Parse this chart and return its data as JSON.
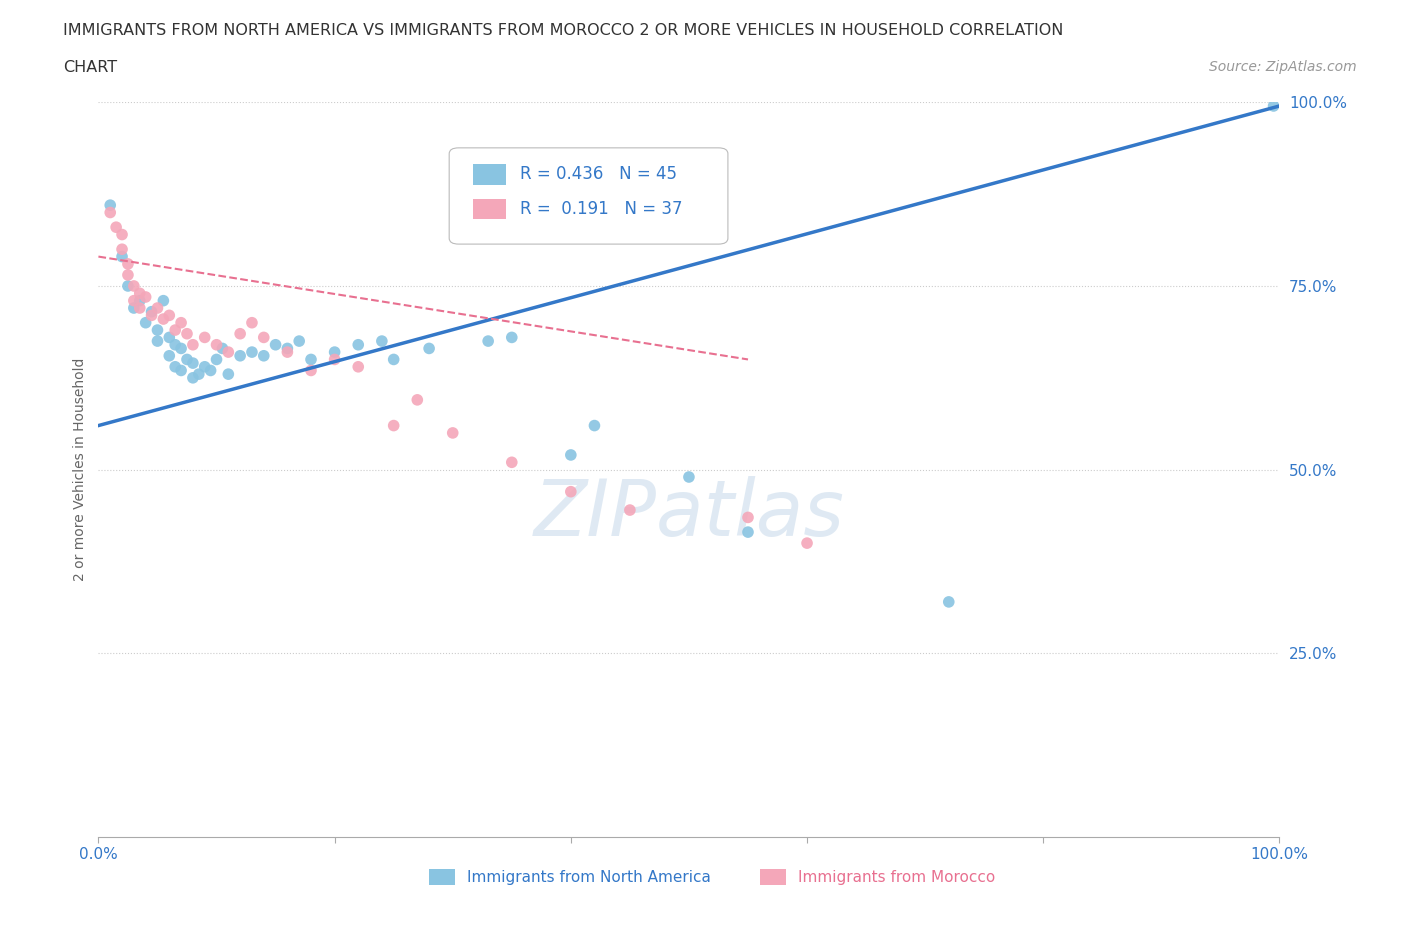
{
  "title_line1": "IMMIGRANTS FROM NORTH AMERICA VS IMMIGRANTS FROM MOROCCO 2 OR MORE VEHICLES IN HOUSEHOLD CORRELATION",
  "title_line2": "CHART",
  "source_text": "Source: ZipAtlas.com",
  "ylabel": "2 or more Vehicles in Household",
  "xlim": [
    0,
    100
  ],
  "ylim": [
    0,
    100
  ],
  "grid_color": "#cccccc",
  "background_color": "#ffffff",
  "watermark_text": "ZIPatlas",
  "R_blue": 0.436,
  "N_blue": 45,
  "R_pink": 0.191,
  "N_pink": 37,
  "blue_color": "#89c4e1",
  "pink_color": "#f4a7b9",
  "blue_line_color": "#3478c8",
  "pink_line_color": "#e87090",
  "label_color": "#3478c8",
  "pink_label_color": "#e87090",
  "north_america_label": "Immigrants from North America",
  "morocco_label": "Immigrants from Morocco",
  "north_america_points": [
    [
      1.0,
      86.0
    ],
    [
      2.0,
      79.0
    ],
    [
      2.5,
      75.0
    ],
    [
      3.0,
      72.0
    ],
    [
      3.5,
      73.0
    ],
    [
      4.0,
      70.0
    ],
    [
      4.5,
      71.5
    ],
    [
      5.0,
      69.0
    ],
    [
      5.0,
      67.5
    ],
    [
      5.5,
      73.0
    ],
    [
      6.0,
      68.0
    ],
    [
      6.0,
      65.5
    ],
    [
      6.5,
      67.0
    ],
    [
      6.5,
      64.0
    ],
    [
      7.0,
      66.5
    ],
    [
      7.0,
      63.5
    ],
    [
      7.5,
      65.0
    ],
    [
      8.0,
      64.5
    ],
    [
      8.0,
      62.5
    ],
    [
      8.5,
      63.0
    ],
    [
      9.0,
      64.0
    ],
    [
      9.5,
      63.5
    ],
    [
      10.0,
      65.0
    ],
    [
      10.5,
      66.5
    ],
    [
      11.0,
      63.0
    ],
    [
      12.0,
      65.5
    ],
    [
      13.0,
      66.0
    ],
    [
      14.0,
      65.5
    ],
    [
      15.0,
      67.0
    ],
    [
      16.0,
      66.5
    ],
    [
      17.0,
      67.5
    ],
    [
      18.0,
      65.0
    ],
    [
      20.0,
      66.0
    ],
    [
      22.0,
      67.0
    ],
    [
      24.0,
      67.5
    ],
    [
      25.0,
      65.0
    ],
    [
      28.0,
      66.5
    ],
    [
      33.0,
      67.5
    ],
    [
      35.0,
      68.0
    ],
    [
      40.0,
      52.0
    ],
    [
      42.0,
      56.0
    ],
    [
      50.0,
      49.0
    ],
    [
      55.0,
      41.5
    ],
    [
      72.0,
      32.0
    ],
    [
      99.5,
      99.5
    ]
  ],
  "morocco_points": [
    [
      1.0,
      85.0
    ],
    [
      1.5,
      83.0
    ],
    [
      2.0,
      82.0
    ],
    [
      2.0,
      80.0
    ],
    [
      2.5,
      78.0
    ],
    [
      2.5,
      76.5
    ],
    [
      3.0,
      75.0
    ],
    [
      3.0,
      73.0
    ],
    [
      3.5,
      74.0
    ],
    [
      3.5,
      72.0
    ],
    [
      4.0,
      73.5
    ],
    [
      4.5,
      71.0
    ],
    [
      5.0,
      72.0
    ],
    [
      5.5,
      70.5
    ],
    [
      6.0,
      71.0
    ],
    [
      6.5,
      69.0
    ],
    [
      7.0,
      70.0
    ],
    [
      7.5,
      68.5
    ],
    [
      8.0,
      67.0
    ],
    [
      9.0,
      68.0
    ],
    [
      10.0,
      67.0
    ],
    [
      11.0,
      66.0
    ],
    [
      12.0,
      68.5
    ],
    [
      13.0,
      70.0
    ],
    [
      14.0,
      68.0
    ],
    [
      16.0,
      66.0
    ],
    [
      18.0,
      63.5
    ],
    [
      20.0,
      65.0
    ],
    [
      22.0,
      64.0
    ],
    [
      25.0,
      56.0
    ],
    [
      27.0,
      59.5
    ],
    [
      30.0,
      55.0
    ],
    [
      35.0,
      51.0
    ],
    [
      40.0,
      47.0
    ],
    [
      45.0,
      44.5
    ],
    [
      55.0,
      43.5
    ],
    [
      60.0,
      40.0
    ]
  ],
  "blue_trendline_x": [
    0,
    100
  ],
  "blue_trendline_y": [
    56.0,
    99.5
  ],
  "pink_trendline_x": [
    0,
    55
  ],
  "pink_trendline_y": [
    79.0,
    65.0
  ]
}
